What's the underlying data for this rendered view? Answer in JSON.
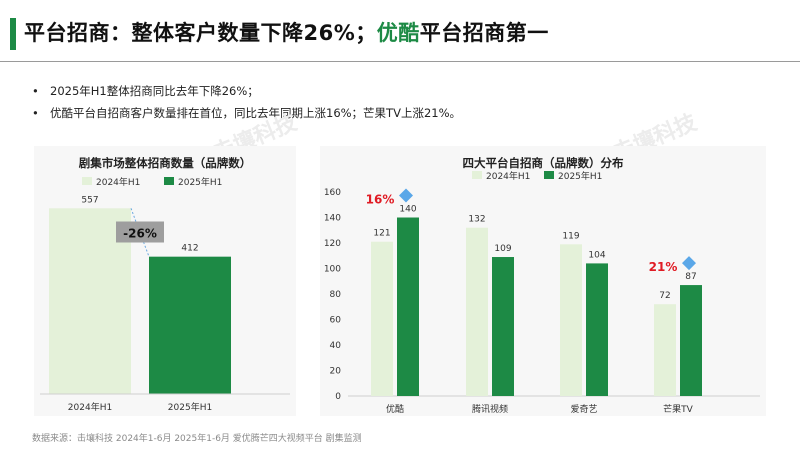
{
  "header": {
    "title_main": "平台招商：整体客户数量下降26%；",
    "title_highlight": "优酷",
    "title_rest": "平台招商第一"
  },
  "bullets": [
    "2025年H1整体招商同比去年下降26%；",
    "优酷平台自招商客户数量排在首位，同比去年同期上涨16%；芒果TV上涨21%。"
  ],
  "bullet_symbol": "•",
  "footnote": "数据来源：击壤科技 2024年1-6月 2025年1-6月 爱优腾芒四大视频平台 剧集监测",
  "watermark": "击壤科技",
  "colors": {
    "accent": "#1d8a45",
    "bar_2024": "#e4f1d9",
    "bar_2025": "#1d8a45",
    "change_red": "#e01b24",
    "diamond": "#5aa7e8",
    "badge_bg": "#9e9e9e"
  },
  "chart_data": [
    {
      "type": "bar",
      "title": "剧集市场整体招商数量（品牌数）",
      "legend": [
        "2024年H1",
        "2025年H1"
      ],
      "legend_position": "top",
      "categories": [
        "2024年H1",
        "2025年H1"
      ],
      "values": [
        557,
        412
      ],
      "change_label": "-26%",
      "ylim": [
        0,
        600
      ],
      "grid": false
    },
    {
      "type": "bar",
      "title": "四大平台自招商（品牌数）分布",
      "legend_position": "top",
      "categories": [
        "优酷",
        "腾讯视频",
        "爱奇艺",
        "芒果TV"
      ],
      "series": [
        {
          "name": "2024年H1",
          "values": [
            121,
            132,
            119,
            72
          ]
        },
        {
          "name": "2025年H1",
          "values": [
            140,
            109,
            104,
            87
          ]
        }
      ],
      "annotations": [
        {
          "category": "优酷",
          "text": "16%"
        },
        {
          "category": "芒果TV",
          "text": "21%"
        }
      ],
      "yticks": [
        0,
        20,
        40,
        60,
        80,
        100,
        120,
        140,
        160
      ],
      "ylim": [
        0,
        160
      ],
      "grid": false
    }
  ]
}
